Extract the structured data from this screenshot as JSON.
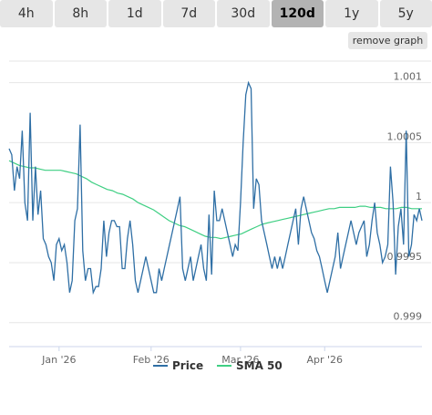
{
  "timeframes": {
    "items": [
      "4h",
      "8h",
      "1d",
      "7d",
      "30d",
      "120d",
      "1y",
      "5y"
    ],
    "active": "120d"
  },
  "remove_graph_label": "remove graph",
  "colors": {
    "price": "#2f6fa5",
    "sma": "#3fcf83",
    "grid": "#e6e6e6",
    "axis": "#ccd6eb"
  },
  "chart_data": {
    "type": "line",
    "ylim": [
      0.999,
      1.001
    ],
    "yticks": [
      "1.001",
      "1.0005",
      "1",
      "0.9995",
      "0.999"
    ],
    "yticks_value": [
      1.001,
      1.0005,
      1.0,
      0.9995,
      0.999
    ],
    "xticks": [
      "Jan '26",
      "Feb '26",
      "Mar '26",
      "Apr '26"
    ],
    "xticks_index": [
      19,
      54,
      88,
      120
    ],
    "series": [
      {
        "name": "Price",
        "values": [
          1.00045,
          1.0004,
          1.0001,
          1.0003,
          1.0002,
          1.0006,
          1.0,
          0.99985,
          1.00075,
          0.99985,
          1.0003,
          0.9999,
          1.0001,
          0.9997,
          0.99965,
          0.99955,
          0.9995,
          0.99935,
          0.99965,
          0.9997,
          0.9996,
          0.99965,
          0.9995,
          0.99925,
          0.99935,
          0.99985,
          0.99995,
          1.00065,
          0.9996,
          0.99935,
          0.99945,
          0.99945,
          0.99925,
          0.9993,
          0.9993,
          0.99945,
          0.99985,
          0.99955,
          0.99975,
          0.99985,
          0.99985,
          0.9998,
          0.9998,
          0.99945,
          0.99945,
          0.9997,
          0.99985,
          0.99965,
          0.99935,
          0.99925,
          0.99935,
          0.99945,
          0.99955,
          0.99945,
          0.99935,
          0.99925,
          0.99925,
          0.99945,
          0.99935,
          0.99945,
          0.99955,
          0.99965,
          0.99975,
          0.99985,
          0.99995,
          1.00005,
          0.99945,
          0.99935,
          0.99945,
          0.99955,
          0.99935,
          0.99945,
          0.99955,
          0.99965,
          0.99945,
          0.99935,
          0.9999,
          0.9994,
          1.0001,
          0.99985,
          0.99985,
          0.99995,
          0.99985,
          0.99975,
          0.99965,
          0.99955,
          0.99965,
          0.9996,
          1.0,
          1.0005,
          1.0009,
          1.001,
          1.00095,
          0.99995,
          1.0002,
          1.00015,
          0.99985,
          0.99975,
          0.99965,
          0.99955,
          0.99945,
          0.99955,
          0.99945,
          0.99955,
          0.99945,
          0.99955,
          0.99965,
          0.99975,
          0.99985,
          0.99995,
          0.99965,
          0.99995,
          1.00005,
          0.99995,
          0.99985,
          0.99975,
          0.9997,
          0.9996,
          0.99955,
          0.99945,
          0.99935,
          0.99925,
          0.99935,
          0.99945,
          0.99955,
          0.99975,
          0.99945,
          0.99955,
          0.99965,
          0.99975,
          0.99985,
          0.99975,
          0.99965,
          0.99975,
          0.9998,
          0.99985,
          0.99955,
          0.99965,
          0.99985,
          1.0,
          0.99975,
          0.99965,
          0.9995,
          0.99955,
          0.99965,
          1.0003,
          1.0,
          0.9994,
          0.9998,
          0.99995,
          0.99965,
          1.0006,
          0.99955,
          0.99965,
          0.9999,
          0.99985,
          0.99995,
          0.99985
        ],
        "note": "filler"
      },
      {
        "name": "SMA 50",
        "values": [
          1.00035,
          1.00033,
          1.00031,
          1.0003,
          1.00029,
          1.00029,
          1.00028,
          1.00027,
          1.00027,
          1.00027,
          1.00027,
          1.00026,
          1.00025,
          1.00024,
          1.00022,
          1.0002,
          1.00017,
          1.00015,
          1.00013,
          1.00011,
          1.0001,
          1.00008,
          1.00007,
          1.00005,
          1.00003,
          1.0,
          0.99998,
          0.99996,
          0.99994,
          0.99991,
          0.99988,
          0.99985,
          0.99983,
          0.99981,
          0.9998,
          0.99978,
          0.99976,
          0.99974,
          0.99972,
          0.99971,
          0.99971,
          0.9997,
          0.99971,
          0.99972,
          0.99973,
          0.99974,
          0.99976,
          0.99978,
          0.9998,
          0.99982,
          0.99983,
          0.99984,
          0.99985,
          0.99986,
          0.99987,
          0.99988,
          0.99989,
          0.9999,
          0.99991,
          0.99992,
          0.99993,
          0.99994,
          0.99995,
          0.99995,
          0.99996,
          0.99996,
          0.99996,
          0.99996,
          0.99997,
          0.99997,
          0.99996,
          0.99996,
          0.99996,
          0.99995,
          0.99995,
          0.99995,
          0.99996,
          0.99996,
          0.99995,
          0.99995,
          0.99995
        ]
      }
    ],
    "legend": [
      "Price",
      "SMA 50"
    ],
    "grid": true,
    "legend_position": "bottom"
  }
}
